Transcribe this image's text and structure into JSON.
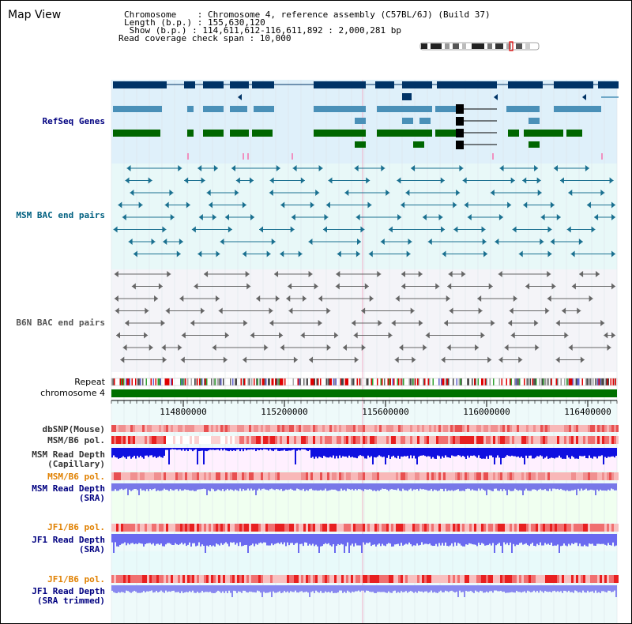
{
  "title": "Map View",
  "info": {
    "line1": "Chromosome    : Chromosome 4, reference assembly (C57BL/6J) (Build 37)",
    "line2": "Length (b.p.) : 155,630,120",
    "line3": " Show (b.p.) : 114,611,612-116,611,892 : 2,000,281 bp",
    "line4": "Read coverage check span : 10,000"
  },
  "tracks": {
    "refseq": "RefSeq Genes",
    "msm_bac": "MSM BAC end pairs",
    "b6n_bac": "B6N BAC end pairs",
    "repeat": "Repeat",
    "chromosome": "chromosome 4",
    "dbsnp": "dbSNP(Mouse)",
    "msm_b6_pol": "MSM/B6 pol.",
    "msm_depth_cap": "MSM Read Depth\n(Capillary)",
    "msm_b6_pol2": "MSM/B6 pol.",
    "msm_depth_sra": "MSM Read Depth\n(SRA)",
    "jf1_b6_pol": "JF1/B6 pol.",
    "jf1_depth_sra": "JF1 Read Depth\n(SRA)",
    "jf1_b6_pol2": "JF1/B6 pol.",
    "jf1_depth_trim": "JF1 Read Depth\n(SRA trimmed)"
  },
  "ruler": {
    "ticks": [
      "114800000",
      "115200000",
      "115600000",
      "116000000",
      "116400000"
    ]
  },
  "colors": {
    "navy": "#003366",
    "steel": "#4a90b8",
    "green": "#006600",
    "chromosome": "#007000",
    "refseq_bg": "#dff0fa",
    "msm_bg": "#e8f8f8",
    "b6n_bg": "#f4f4f8"
  }
}
